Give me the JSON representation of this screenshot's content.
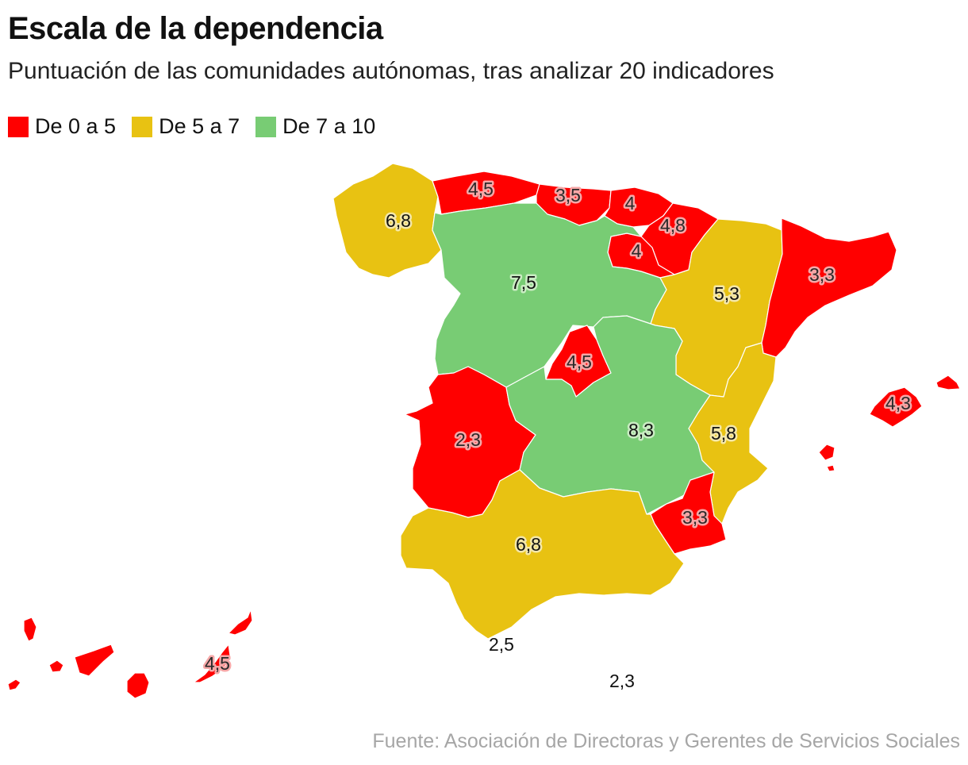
{
  "title": "Escala de la dependencia",
  "subtitle": "Puntuación de las comunidades autónomas, tras analizar 20 indicadores",
  "legend": [
    {
      "label": "De 0 a 5",
      "color": "#ff0000"
    },
    {
      "label": "De 5 a 7",
      "color": "#e8c212"
    },
    {
      "label": "De 7 a 10",
      "color": "#78cc74"
    }
  ],
  "regions": {
    "galicia": {
      "label": "6,8",
      "category": "yellow"
    },
    "asturias": {
      "label": "4,5",
      "category": "red"
    },
    "cantabria": {
      "label": "3,5",
      "category": "red"
    },
    "pais_vasco": {
      "label": "4",
      "category": "red"
    },
    "navarra": {
      "label": "4,8",
      "category": "red"
    },
    "la_rioja": {
      "label": "4",
      "category": "red"
    },
    "castilla_leon": {
      "label": "7,5",
      "category": "green"
    },
    "aragon": {
      "label": "5,3",
      "category": "yellow"
    },
    "cataluna": {
      "label": "3,3",
      "category": "red"
    },
    "madrid": {
      "label": "4,5",
      "category": "red"
    },
    "extremadura": {
      "label": "2,3",
      "category": "red"
    },
    "castilla_la_mancha": {
      "label": "8,3",
      "category": "green"
    },
    "valencia": {
      "label": "5,8",
      "category": "yellow"
    },
    "baleares": {
      "label": "4,3",
      "category": "red"
    },
    "murcia": {
      "label": "3,3",
      "category": "red"
    },
    "andalucia": {
      "label": "6,8",
      "category": "yellow"
    },
    "canarias": {
      "label": "4,5",
      "category": "red"
    },
    "ceuta": {
      "label": "2,5",
      "category": "none"
    },
    "melilla": {
      "label": "2,3",
      "category": "none"
    }
  },
  "source": "Fuente: Asociación de Directoras y Gerentes de Servicios Sociales"
}
